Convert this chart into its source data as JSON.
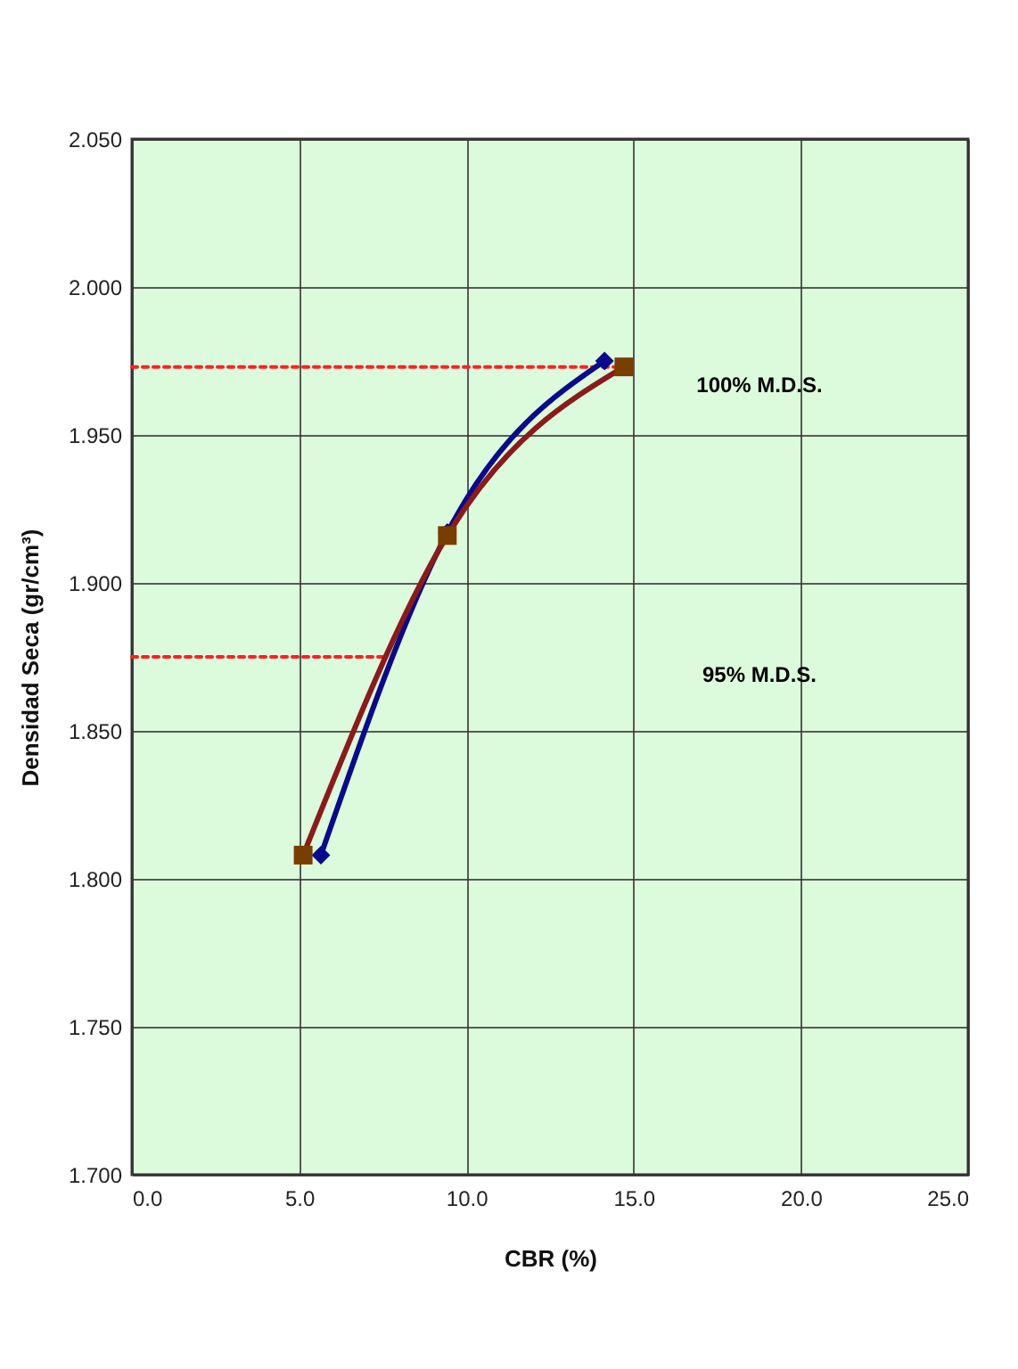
{
  "chart_data": {
    "type": "line",
    "xlabel": "CBR  (%)",
    "ylabel": "Densidad Seca (gr/cm³)",
    "xlim": [
      0,
      25
    ],
    "xticks": [
      {
        "value": 0,
        "label": "0.0"
      },
      {
        "value": 5,
        "label": "5.0"
      },
      {
        "value": 10,
        "label": "10.0"
      },
      {
        "value": 15,
        "label": "15.0"
      },
      {
        "value": 20,
        "label": "20.0"
      },
      {
        "value": 25,
        "label": "25.0"
      }
    ],
    "ylim": [
      1.7,
      2.05
    ],
    "yticks": [
      {
        "value": 1.7,
        "label": "1.700"
      },
      {
        "value": 1.75,
        "label": "1.750"
      },
      {
        "value": 1.8,
        "label": "1.800"
      },
      {
        "value": 1.85,
        "label": "1.850"
      },
      {
        "value": 1.9,
        "label": "1.900"
      },
      {
        "value": 1.95,
        "label": "1.950"
      },
      {
        "value": 2.0,
        "label": "2.000"
      },
      {
        "value": 2.05,
        "label": "2.050"
      }
    ],
    "grid": true,
    "series": [
      {
        "color": "#0a0a8c",
        "marker": "diamond",
        "x": [
          5.65,
          9.43,
          14.13
        ],
        "values": [
          1.808,
          1.917,
          1.975
        ]
      },
      {
        "color": "#8b1a1a",
        "marker": "square",
        "x": [
          5.12,
          9.43,
          14.71
        ],
        "values": [
          1.808,
          1.916,
          1.973
        ]
      },
      {
        "color": "#ff2020",
        "marker": "none",
        "line_style": "dotted",
        "x": [
          0,
          14.71
        ],
        "values": [
          1.973,
          1.973
        ]
      },
      {
        "color": "#ff2020",
        "marker": "none",
        "line_style": "dotted",
        "x": [
          0,
          7.5
        ],
        "values": [
          1.875,
          1.875
        ]
      }
    ],
    "annotations": [
      "100% M.D.S.",
      "95% M.D.S."
    ]
  }
}
